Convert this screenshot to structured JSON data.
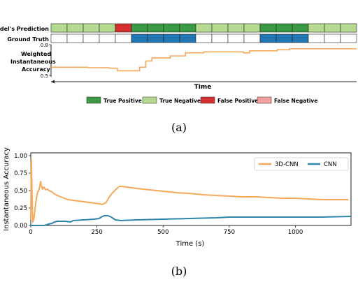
{
  "chart_data": [
    {
      "type": "timeline",
      "colors": {
        "tp": "#3c9a46",
        "tn": "#b5d98f",
        "fp": "#d32f2f",
        "fn": "#f4a0a0",
        "gt_on": "#1f77b4",
        "accuracy_line": "#f4a95b"
      },
      "row_labels": {
        "prediction": "Model's Prediction",
        "ground_truth": "Ground Truth",
        "accuracy": [
          "Weighted",
          "Instantaneous",
          "Accuracy"
        ]
      },
      "prediction_cells": [
        "TN",
        "TN",
        "TN",
        "TN",
        "FP",
        "TP",
        "TP",
        "TP",
        "TP",
        "TN",
        "TN",
        "TN",
        "TN",
        "TP",
        "TP",
        "TP",
        "TN",
        "TN",
        "TN"
      ],
      "ground_truth_cells": [
        0,
        0,
        0,
        0,
        0,
        1,
        1,
        1,
        1,
        0,
        0,
        0,
        0,
        1,
        1,
        1,
        0,
        0,
        0
      ],
      "accuracy_yticks": [
        "0.5",
        "0.8"
      ],
      "accuracy_ylim": [
        0.5,
        0.8
      ],
      "accuracy_steps": [
        {
          "x": 0,
          "y": 0.58
        },
        {
          "x": 0.12,
          "y": 0.575
        },
        {
          "x": 0.19,
          "y": 0.57
        },
        {
          "x": 0.217,
          "y": 0.545
        },
        {
          "x": 0.29,
          "y": 0.58
        },
        {
          "x": 0.31,
          "y": 0.64
        },
        {
          "x": 0.33,
          "y": 0.67
        },
        {
          "x": 0.39,
          "y": 0.69
        },
        {
          "x": 0.44,
          "y": 0.72
        },
        {
          "x": 0.5,
          "y": 0.73
        },
        {
          "x": 0.63,
          "y": 0.72
        },
        {
          "x": 0.65,
          "y": 0.74
        },
        {
          "x": 0.74,
          "y": 0.75
        },
        {
          "x": 0.78,
          "y": 0.76
        },
        {
          "x": 1.0,
          "y": 0.76
        }
      ],
      "xlabel": "Time",
      "legend": [
        {
          "key": "tp",
          "label": "True Positive"
        },
        {
          "key": "tn",
          "label": "True Negative"
        },
        {
          "key": "fp",
          "label": "False Positive"
        },
        {
          "key": "fn",
          "label": "False Negative"
        }
      ],
      "caption": "(a)"
    },
    {
      "type": "line",
      "xlabel": "Time (s)",
      "ylabel": "Instantaneous Accuracy",
      "xlim": [
        0,
        1210
      ],
      "ylim": [
        0,
        1.04
      ],
      "xticks": [
        0,
        250,
        500,
        750,
        1000
      ],
      "yticks": [
        "0.00",
        "0.25",
        "0.50",
        "0.75",
        "1.00"
      ],
      "legend_position": "top-right",
      "series": [
        {
          "name": "3D-CNN",
          "color": "#f4a95b",
          "points": [
            [
              0,
              0.08
            ],
            [
              2,
              0.95
            ],
            [
              4,
              0.6
            ],
            [
              6,
              0.2
            ],
            [
              8,
              0.05
            ],
            [
              12,
              0.1
            ],
            [
              15,
              0.2
            ],
            [
              18,
              0.3
            ],
            [
              22,
              0.4
            ],
            [
              26,
              0.48
            ],
            [
              30,
              0.5
            ],
            [
              34,
              0.56
            ],
            [
              37,
              0.63
            ],
            [
              40,
              0.58
            ],
            [
              44,
              0.52
            ],
            [
              50,
              0.55
            ],
            [
              56,
              0.51
            ],
            [
              62,
              0.52
            ],
            [
              70,
              0.5
            ],
            [
              80,
              0.48
            ],
            [
              90,
              0.45
            ],
            [
              100,
              0.43
            ],
            [
              120,
              0.4
            ],
            [
              140,
              0.37
            ],
            [
              160,
              0.36
            ],
            [
              180,
              0.35
            ],
            [
              200,
              0.34
            ],
            [
              220,
              0.33
            ],
            [
              240,
              0.32
            ],
            [
              260,
              0.31
            ],
            [
              270,
              0.3
            ],
            [
              285,
              0.33
            ],
            [
              295,
              0.4
            ],
            [
              305,
              0.45
            ],
            [
              315,
              0.49
            ],
            [
              325,
              0.53
            ],
            [
              335,
              0.56
            ],
            [
              345,
              0.56
            ],
            [
              400,
              0.53
            ],
            [
              450,
              0.51
            ],
            [
              500,
              0.49
            ],
            [
              550,
              0.47
            ],
            [
              600,
              0.46
            ],
            [
              650,
              0.44
            ],
            [
              700,
              0.43
            ],
            [
              750,
              0.42
            ],
            [
              800,
              0.41
            ],
            [
              850,
              0.41
            ],
            [
              900,
              0.4
            ],
            [
              950,
              0.39
            ],
            [
              1000,
              0.39
            ],
            [
              1050,
              0.38
            ],
            [
              1100,
              0.37
            ],
            [
              1150,
              0.37
            ],
            [
              1200,
              0.37
            ]
          ]
        },
        {
          "name": "CNN",
          "color": "#2e86ab",
          "points": [
            [
              0,
              0.0
            ],
            [
              50,
              0.0
            ],
            [
              60,
              0.01
            ],
            [
              68,
              0.02
            ],
            [
              80,
              0.03
            ],
            [
              90,
              0.05
            ],
            [
              100,
              0.06
            ],
            [
              130,
              0.06
            ],
            [
              150,
              0.05
            ],
            [
              160,
              0.07
            ],
            [
              200,
              0.08
            ],
            [
              240,
              0.09
            ],
            [
              258,
              0.1
            ],
            [
              266,
              0.12
            ],
            [
              278,
              0.14
            ],
            [
              292,
              0.14
            ],
            [
              304,
              0.12
            ],
            [
              320,
              0.08
            ],
            [
              340,
              0.07
            ],
            [
              400,
              0.08
            ],
            [
              500,
              0.09
            ],
            [
              600,
              0.1
            ],
            [
              700,
              0.11
            ],
            [
              750,
              0.12
            ],
            [
              800,
              0.12
            ],
            [
              900,
              0.12
            ],
            [
              1000,
              0.12
            ],
            [
              1100,
              0.12
            ],
            [
              1210,
              0.13
            ]
          ]
        }
      ],
      "caption": "(b)"
    }
  ]
}
